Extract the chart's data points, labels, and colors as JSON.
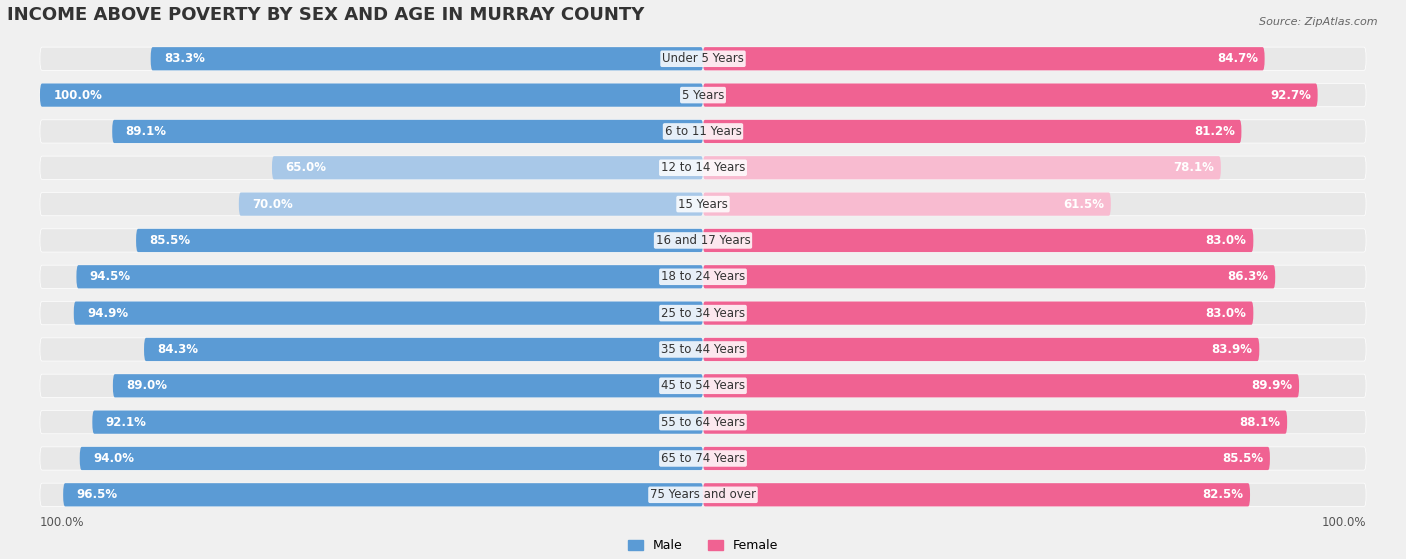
{
  "title": "INCOME ABOVE POVERTY BY SEX AND AGE IN MURRAY COUNTY",
  "source": "Source: ZipAtlas.com",
  "categories": [
    "Under 5 Years",
    "5 Years",
    "6 to 11 Years",
    "12 to 14 Years",
    "15 Years",
    "16 and 17 Years",
    "18 to 24 Years",
    "25 to 34 Years",
    "35 to 44 Years",
    "45 to 54 Years",
    "55 to 64 Years",
    "65 to 74 Years",
    "75 Years and over"
  ],
  "male_values": [
    83.3,
    100.0,
    89.1,
    65.0,
    70.0,
    85.5,
    94.5,
    94.9,
    84.3,
    89.0,
    92.1,
    94.0,
    96.5
  ],
  "female_values": [
    84.7,
    92.7,
    81.2,
    78.1,
    61.5,
    83.0,
    86.3,
    83.0,
    83.9,
    89.9,
    88.1,
    85.5,
    82.5
  ],
  "male_color_dark": "#5B9BD5",
  "male_color_light": "#A8C8E8",
  "female_color_dark": "#F06292",
  "female_color_light": "#F8BBD0",
  "bg_color": "#F0F0F0",
  "bar_bg_color": "#E0E0E0",
  "title_fontsize": 13,
  "label_fontsize": 8.5,
  "value_fontsize": 8.5,
  "threshold_dark": 80.0
}
